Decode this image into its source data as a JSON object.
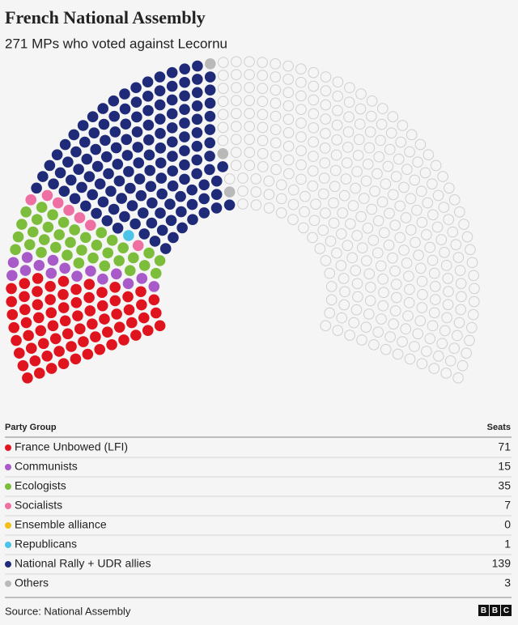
{
  "chart_data": {
    "type": "parliament",
    "title": "French National Assembly",
    "subtitle": "271 MPs who voted against Lecornu",
    "legend_header": "Party Group",
    "values_header": "Seats",
    "categories": [
      "France Unbowed (LFI)",
      "Communists",
      "Ecologists",
      "Socialists",
      "Ensemble alliance",
      "Republicans",
      "National Rally + UDR allies",
      "Others"
    ],
    "values": [
      71,
      15,
      35,
      7,
      0,
      1,
      139,
      3
    ],
    "colors": [
      "#e0141e",
      "#a75ac8",
      "#7cbd3b",
      "#ee6fa1",
      "#f2c01b",
      "#4cc4ea",
      "#1f2a78",
      "#b9b9b9"
    ],
    "source": "Source: National Assembly"
  }
}
